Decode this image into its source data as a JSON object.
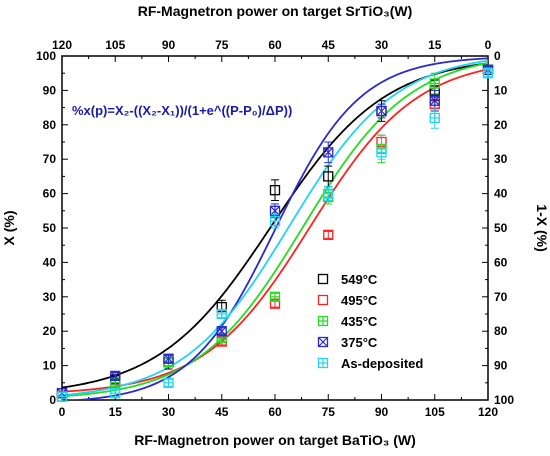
{
  "chart_data": {
    "type": "scatter",
    "title": "",
    "xlabel": "RF-Magnetron power on target BaTiO₃ (W)",
    "x2label": "RF-Magnetron power on target SrTiO₃(W)",
    "ylabel": "X (%)",
    "y2label": "1-X (%)",
    "xlim": [
      0,
      120
    ],
    "ylim": [
      0,
      100
    ],
    "x_ticks": [
      0,
      15,
      30,
      45,
      60,
      75,
      90,
      105,
      120
    ],
    "x2_ticks": [
      120,
      105,
      90,
      75,
      60,
      45,
      30,
      15,
      0
    ],
    "y_ticks": [
      0,
      10,
      20,
      30,
      40,
      50,
      60,
      70,
      80,
      90,
      100
    ],
    "y2_ticks": [
      100,
      90,
      80,
      70,
      60,
      50,
      40,
      30,
      20,
      10,
      0
    ],
    "formula": "%x(p)=X₂-((X₂-X₁))/(1+e^((P-P₀)/ΔP))",
    "formula_color": "#1a1aa6",
    "legend_position": "bottom-right",
    "series": [
      {
        "name": "549°C",
        "color": "#000000",
        "marker": "square",
        "points": [
          [
            0,
            2
          ],
          [
            15,
            6
          ],
          [
            30,
            11
          ],
          [
            45,
            27
          ],
          [
            60,
            61
          ],
          [
            75,
            65
          ],
          [
            90,
            84
          ],
          [
            105,
            90
          ],
          [
            120,
            96
          ]
        ],
        "errors": [
          0,
          1,
          2,
          2,
          3,
          3,
          3,
          3,
          1
        ],
        "fit": {
          "x1": 1.2,
          "x2": 100,
          "p0": 59,
          "dp": 16
        }
      },
      {
        "name": "495°C",
        "color": "#ff2020",
        "marker": "square",
        "points": [
          [
            0,
            1
          ],
          [
            15,
            5
          ],
          [
            30,
            11
          ],
          [
            45,
            17
          ],
          [
            60,
            28
          ],
          [
            75,
            48
          ],
          [
            90,
            75
          ],
          [
            105,
            86
          ],
          [
            120,
            96
          ]
        ],
        "errors": [
          0,
          1,
          1,
          1,
          1,
          1,
          2,
          2,
          1
        ],
        "fit": {
          "x1": 1.5,
          "x2": 99.5,
          "p0": 70,
          "dp": 15
        }
      },
      {
        "name": "435°C",
        "color": "#22dd22",
        "marker": "hash",
        "points": [
          [
            0,
            1
          ],
          [
            15,
            5
          ],
          [
            30,
            11
          ],
          [
            45,
            18
          ],
          [
            60,
            30
          ],
          [
            75,
            59
          ],
          [
            90,
            73
          ],
          [
            105,
            92
          ],
          [
            120,
            96
          ]
        ],
        "errors": [
          0,
          1,
          1,
          1,
          1,
          2,
          4,
          3,
          1
        ],
        "fit": {
          "x1": 0,
          "x2": 101,
          "p0": 68,
          "dp": 15
        }
      },
      {
        "name": "375°C",
        "color": "#2a2acc",
        "marker": "xsquare",
        "points": [
          [
            0,
            2
          ],
          [
            15,
            7
          ],
          [
            30,
            12
          ],
          [
            45,
            20
          ],
          [
            60,
            55
          ],
          [
            75,
            72
          ],
          [
            90,
            84
          ],
          [
            105,
            87
          ],
          [
            120,
            96
          ]
        ],
        "errors": [
          0,
          1,
          1,
          1,
          2,
          3,
          2,
          3,
          1
        ],
        "fit": {
          "x1": -1,
          "x2": 100,
          "p0": 60,
          "dp": 12
        }
      },
      {
        "name": "As-deposited",
        "color": "#22d4f2",
        "marker": "hash",
        "points": [
          [
            0,
            1
          ],
          [
            15,
            2
          ],
          [
            30,
            5
          ],
          [
            45,
            25
          ],
          [
            60,
            52
          ],
          [
            75,
            60
          ],
          [
            90,
            72
          ],
          [
            105,
            82
          ],
          [
            120,
            95
          ]
        ],
        "errors": [
          0,
          1,
          1,
          1,
          2,
          2,
          2,
          3,
          1
        ],
        "fit": {
          "x1": 0,
          "x2": 101,
          "p0": 64,
          "dp": 15
        }
      }
    ]
  }
}
